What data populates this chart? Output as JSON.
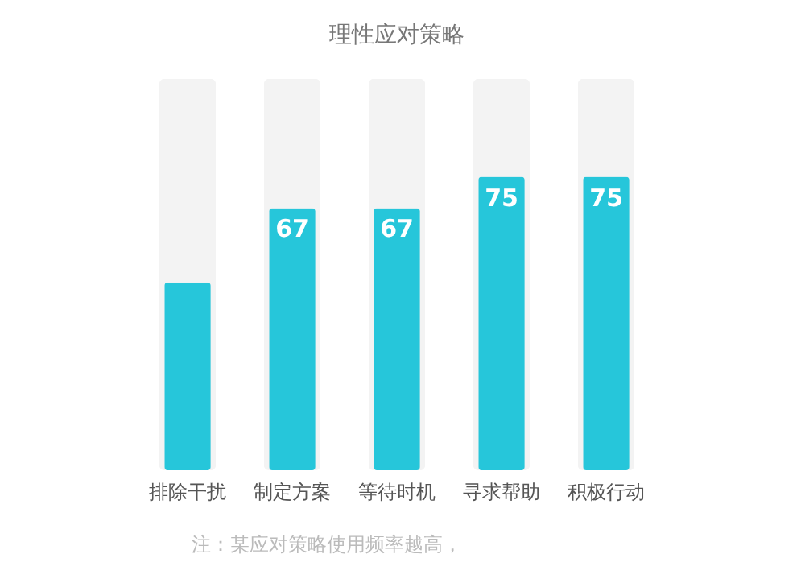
{
  "chart_data": {
    "type": "bar",
    "title": "理性应对策略",
    "categories": [
      "排除干扰",
      "制定方案",
      "等待时机",
      "寻求帮助",
      "积极行动"
    ],
    "values": [
      48,
      67,
      67,
      75,
      75
    ],
    "value_labels": [
      null,
      "67",
      "67",
      "75",
      "75"
    ],
    "color": "#26c6da",
    "ylim": [
      0,
      100
    ],
    "tick_labels": "x",
    "grid": false,
    "annotations": [
      "注：某应对策略使用频率越高，"
    ]
  }
}
